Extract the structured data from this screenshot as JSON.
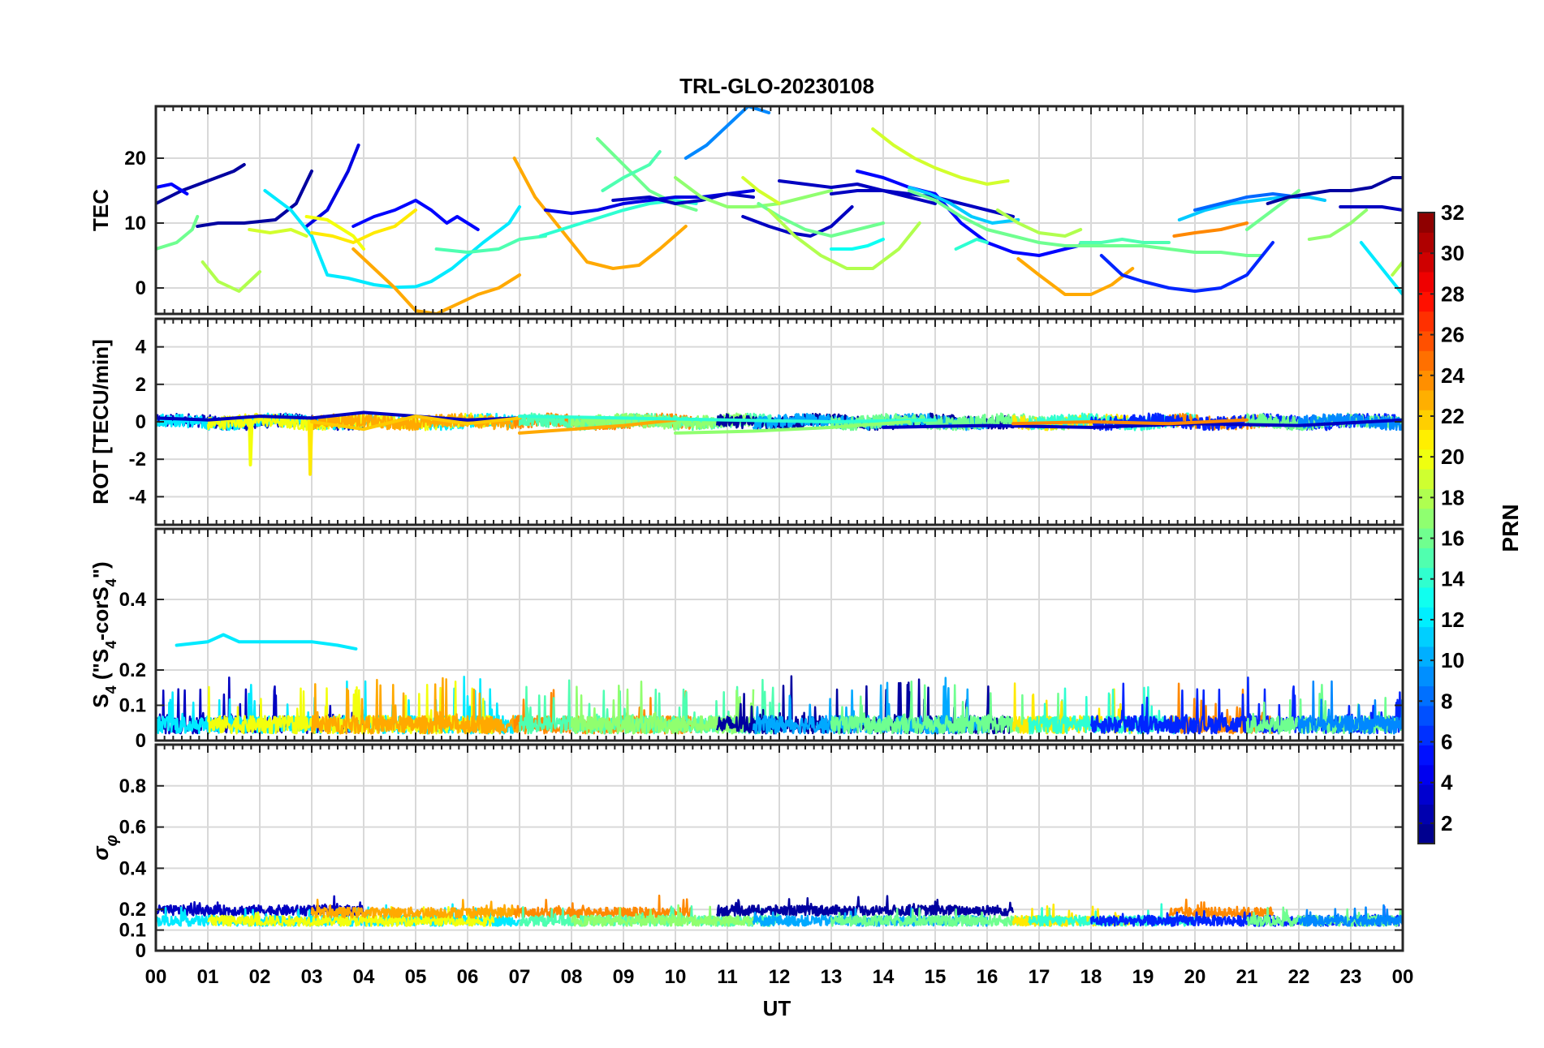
{
  "figure": {
    "title": "TRL-GLO-20230108",
    "xlabel": "UT",
    "x_ticks": [
      "00",
      "01",
      "02",
      "03",
      "04",
      "05",
      "06",
      "07",
      "08",
      "09",
      "10",
      "11",
      "12",
      "13",
      "14",
      "15",
      "16",
      "17",
      "18",
      "19",
      "20",
      "21",
      "22",
      "23",
      "00"
    ]
  },
  "colorbar": {
    "label": "PRN",
    "range": [
      1,
      32
    ],
    "ticks": [
      "2",
      "4",
      "6",
      "8",
      "10",
      "12",
      "14",
      "16",
      "18",
      "20",
      "22",
      "24",
      "26",
      "28",
      "30",
      "32"
    ],
    "colormap": "jet"
  },
  "chart_data": [
    {
      "type": "line",
      "panel": "TEC",
      "ylabel": "TEC",
      "xlim": [
        0,
        24
      ],
      "ylim": [
        -4,
        28
      ],
      "y_ticks": [
        "0",
        "10",
        "20"
      ],
      "grid": true,
      "x_unit": "hours UT",
      "series": [
        {
          "prn": 2,
          "x": [
            0.0,
            0.5,
            1.0,
            1.5,
            1.7
          ],
          "y": [
            13,
            15,
            16.5,
            18,
            19
          ]
        },
        {
          "prn": 5,
          "x": [
            0.0,
            0.3,
            0.6
          ],
          "y": [
            15.5,
            16,
            14.5
          ]
        },
        {
          "prn": 2,
          "x": [
            0.8,
            1.2,
            1.7,
            2.3,
            2.7,
            3.0
          ],
          "y": [
            9.5,
            10,
            10,
            10.5,
            13,
            18
          ]
        },
        {
          "prn": 4,
          "x": [
            2.9,
            3.3,
            3.7,
            3.9
          ],
          "y": [
            9.5,
            12,
            18,
            22
          ]
        },
        {
          "prn": 16,
          "x": [
            0.0,
            0.4,
            0.7,
            0.8
          ],
          "y": [
            6,
            7,
            9,
            11
          ]
        },
        {
          "prn": 18,
          "x": [
            0.9,
            1.2,
            1.6,
            2.0
          ],
          "y": [
            4,
            1,
            -0.5,
            2.5
          ]
        },
        {
          "prn": 19,
          "x": [
            1.8,
            2.2,
            2.6,
            2.9
          ],
          "y": [
            9,
            8.5,
            9,
            8
          ]
        },
        {
          "prn": 12,
          "x": [
            2.1,
            2.6,
            3.0,
            3.3,
            3.7,
            4.2,
            4.6,
            5.0,
            5.3,
            5.7,
            6.0,
            6.3,
            6.8,
            7.0
          ],
          "y": [
            15,
            12,
            8,
            2,
            1.5,
            0.5,
            0.1,
            0.2,
            1,
            3,
            5,
            7,
            10,
            12.5
          ]
        },
        {
          "prn": 20,
          "x": [
            2.9,
            3.3,
            3.6,
            3.8,
            4.0
          ],
          "y": [
            11,
            10.5,
            9,
            8,
            6
          ]
        },
        {
          "prn": 21,
          "x": [
            3.0,
            3.4,
            3.8,
            4.2,
            4.6,
            5.0
          ],
          "y": [
            8.5,
            8,
            7,
            8.5,
            9.5,
            12
          ]
        },
        {
          "prn": 23,
          "x": [
            3.8,
            4.2,
            4.6,
            5.0,
            5.4,
            5.8,
            6.2,
            6.6,
            7.0
          ],
          "y": [
            6,
            3,
            0,
            -3.5,
            -4,
            -2.5,
            -1,
            0,
            2
          ]
        },
        {
          "prn": 5,
          "x": [
            3.8,
            4.2,
            4.6,
            5.0,
            5.3,
            5.6,
            5.8,
            6.2
          ],
          "y": [
            9.5,
            11,
            12,
            13.5,
            12,
            10,
            11,
            9
          ]
        },
        {
          "prn": 15,
          "x": [
            5.4,
            6.0,
            6.6,
            7.0,
            7.5
          ],
          "y": [
            6,
            5.5,
            6,
            7.5,
            8
          ]
        },
        {
          "prn": 23,
          "x": [
            6.9,
            7.3,
            7.8,
            8.3,
            8.8,
            9.3,
            9.7,
            10.2
          ],
          "y": [
            20,
            14,
            9,
            4,
            3,
            3.5,
            6,
            9.5
          ]
        },
        {
          "prn": 14,
          "x": [
            7.4,
            7.8,
            8.2,
            8.6,
            9.0,
            9.5,
            10.0,
            10.4
          ],
          "y": [
            8,
            9,
            10,
            11,
            12,
            13,
            13.5,
            13
          ]
        },
        {
          "prn": 16,
          "x": [
            8.5,
            9.0,
            9.5,
            10.0,
            10.4
          ],
          "y": [
            23,
            19,
            15,
            13,
            12
          ]
        },
        {
          "prn": 15,
          "x": [
            8.6,
            9.0,
            9.5,
            9.7
          ],
          "y": [
            15,
            17,
            19,
            21
          ]
        },
        {
          "prn": 4,
          "x": [
            7.5,
            8.0,
            8.5,
            9.0,
            9.5,
            10.0,
            10.5,
            11.0,
            11.5
          ],
          "y": [
            12,
            11.5,
            12,
            13,
            13.5,
            14,
            14,
            14.5,
            15
          ]
        },
        {
          "prn": 3,
          "x": [
            8.8,
            9.5,
            10.0,
            10.5,
            11.0,
            11.5
          ],
          "y": [
            13.5,
            14,
            13,
            13.5,
            14.5,
            14
          ]
        },
        {
          "prn": 9,
          "x": [
            10.2,
            10.6,
            11.0,
            11.4,
            11.8
          ],
          "y": [
            20,
            22,
            25,
            28,
            27
          ]
        },
        {
          "prn": 17,
          "x": [
            10.0,
            10.5,
            11.0,
            11.5,
            12.0,
            12.5,
            13.0
          ],
          "y": [
            17,
            14,
            12.5,
            12.5,
            13,
            14,
            15
          ]
        },
        {
          "prn": 3,
          "x": [
            11.3,
            11.8,
            12.2,
            12.6,
            13.0,
            13.4
          ],
          "y": [
            11,
            9.5,
            8.5,
            8,
            9.5,
            12.5
          ]
        },
        {
          "prn": 19,
          "x": [
            11.3,
            11.6,
            12.0
          ],
          "y": [
            17,
            15,
            13
          ]
        },
        {
          "prn": 16,
          "x": [
            11.6,
            12.0,
            12.5,
            13.0,
            13.5,
            14.0
          ],
          "y": [
            13,
            11,
            9,
            8,
            9,
            10
          ]
        },
        {
          "prn": 18,
          "x": [
            11.8,
            12.3,
            12.8,
            13.3,
            13.8,
            14.3,
            14.7
          ],
          "y": [
            12,
            8,
            5,
            3,
            3,
            6,
            10
          ]
        },
        {
          "prn": 3,
          "x": [
            12.0,
            12.5,
            13.0,
            13.5,
            14.0,
            14.5,
            15.0
          ],
          "y": [
            16.5,
            16,
            15.5,
            16,
            15,
            14,
            13
          ]
        },
        {
          "prn": 13,
          "x": [
            13.0,
            13.4,
            13.7,
            14.0
          ],
          "y": [
            6,
            6,
            6.5,
            7.5
          ]
        },
        {
          "prn": 19,
          "x": [
            13.8,
            14.2,
            14.6,
            15.0,
            15.5,
            16.0,
            16.4
          ],
          "y": [
            24.5,
            22,
            20,
            18.5,
            17,
            16,
            16.5
          ]
        },
        {
          "prn": 3,
          "x": [
            13.0,
            13.5,
            14.0,
            14.5,
            15.0,
            15.5,
            16.0,
            16.5
          ],
          "y": [
            14.5,
            15,
            15,
            14.5,
            14,
            13,
            12,
            11
          ]
        },
        {
          "prn": 5,
          "x": [
            13.5,
            14.0,
            14.5,
            15.0,
            15.5,
            16.0,
            16.5,
            17.0,
            17.5,
            18.0
          ],
          "y": [
            18,
            17,
            15.5,
            14.5,
            10,
            7,
            5.5,
            5,
            6,
            7
          ]
        },
        {
          "prn": 11,
          "x": [
            14.5,
            14.9,
            15.3,
            15.7,
            16.1,
            16.6
          ],
          "y": [
            15.5,
            14.5,
            13,
            11,
            10,
            10.5
          ]
        },
        {
          "prn": 16,
          "x": [
            14.5,
            15.0,
            15.5,
            16.0,
            16.5,
            17.0,
            17.5,
            18.0,
            18.5,
            19.0,
            19.5,
            20.0,
            20.5,
            21.0,
            21.3
          ],
          "y": [
            15,
            13.5,
            11,
            9,
            8,
            7,
            6.5,
            6.5,
            6.5,
            6.5,
            6,
            5.5,
            5.5,
            5,
            5
          ]
        },
        {
          "prn": 14,
          "x": [
            15.4,
            15.8,
            16.0
          ],
          "y": [
            6,
            7.5,
            7
          ]
        },
        {
          "prn": 23,
          "x": [
            16.6,
            17.0,
            17.5,
            18.0,
            18.4,
            18.8
          ],
          "y": [
            4.5,
            2,
            -1,
            -1,
            0.5,
            3
          ]
        },
        {
          "prn": 18,
          "x": [
            16.2,
            16.6,
            17.0,
            17.5,
            17.8
          ],
          "y": [
            12,
            10,
            8.5,
            8,
            9
          ]
        },
        {
          "prn": 15,
          "x": [
            17.8,
            18.2,
            18.6,
            19.0,
            19.5
          ],
          "y": [
            7,
            7,
            7.5,
            7,
            7
          ]
        },
        {
          "prn": 6,
          "x": [
            18.2,
            18.6,
            19.0,
            19.5,
            20.0,
            20.5,
            21.0,
            21.5
          ],
          "y": [
            5,
            2,
            1,
            0,
            -0.5,
            0,
            2,
            7
          ]
        },
        {
          "prn": 24,
          "x": [
            19.6,
            20.0,
            20.5,
            21.0
          ],
          "y": [
            8,
            8.5,
            9,
            10
          ]
        },
        {
          "prn": 11,
          "x": [
            19.7,
            20.2,
            20.7,
            21.2,
            21.7,
            22.2,
            22.5
          ],
          "y": [
            10.5,
            12,
            13,
            13.5,
            14,
            14,
            13.5
          ]
        },
        {
          "prn": 8,
          "x": [
            20.0,
            20.5,
            21.0,
            21.5,
            22.0
          ],
          "y": [
            12,
            13,
            14,
            14.5,
            14
          ]
        },
        {
          "prn": 16,
          "x": [
            21.0,
            21.5,
            22.0
          ],
          "y": [
            9,
            12,
            15
          ]
        },
        {
          "prn": 2,
          "x": [
            21.4,
            21.8,
            22.2,
            22.6,
            23.0,
            23.4,
            23.8,
            24.0
          ],
          "y": [
            13,
            14,
            14.5,
            15,
            15,
            15.5,
            17,
            17
          ]
        },
        {
          "prn": 17,
          "x": [
            22.2,
            22.6,
            23.0,
            23.3
          ],
          "y": [
            7.5,
            8,
            10,
            12
          ]
        },
        {
          "prn": 12,
          "x": [
            23.2,
            23.5,
            23.8,
            24.0
          ],
          "y": [
            7,
            4,
            1,
            -1
          ]
        },
        {
          "prn": 3,
          "x": [
            22.8,
            23.2,
            23.6,
            24.0
          ],
          "y": [
            12.5,
            12.5,
            12.5,
            12
          ]
        },
        {
          "prn": 18,
          "x": [
            23.8,
            24.0
          ],
          "y": [
            2,
            4
          ]
        }
      ]
    },
    {
      "type": "line",
      "panel": "ROT",
      "ylabel": "ROT [TECU/min]",
      "xlim": [
        0,
        24
      ],
      "ylim": [
        -5.5,
        5.5
      ],
      "y_ticks": [
        "-4",
        "-2",
        "0",
        "2",
        "4"
      ],
      "grid": true,
      "notes_visible": "noisy traces near 0, spikes to about -2.3 near 01:48 and -2.8 near 02:57",
      "series": [
        {
          "prn": 3,
          "x": [
            0,
            1,
            2,
            3,
            4,
            5,
            6,
            7
          ],
          "y": [
            0.2,
            0.1,
            0.3,
            0.2,
            0.5,
            0.3,
            0.1,
            0.2
          ]
        },
        {
          "prn": 20,
          "x": [
            1.8,
            1.82,
            1.85
          ],
          "y": [
            0,
            -2.3,
            0
          ]
        },
        {
          "prn": 21,
          "x": [
            2.95,
            2.97,
            3.0
          ],
          "y": [
            0,
            -2.8,
            0
          ]
        },
        {
          "prn": 22,
          "x": [
            3,
            4,
            5,
            6,
            7
          ],
          "y": [
            0,
            -0.4,
            0.3,
            -0.1,
            0.2
          ]
        },
        {
          "prn": 23,
          "x": [
            7,
            8,
            9,
            10
          ],
          "y": [
            -0.6,
            -0.4,
            -0.2,
            0.1
          ]
        },
        {
          "prn": 14,
          "x": [
            7,
            9,
            11,
            13,
            15
          ],
          "y": [
            0.3,
            0.2,
            0.1,
            0.0,
            0.1
          ]
        },
        {
          "prn": 17,
          "x": [
            10,
            11.5,
            13,
            14.5
          ],
          "y": [
            -0.6,
            -0.5,
            -0.3,
            0.0
          ]
        },
        {
          "prn": 3,
          "x": [
            14,
            16,
            18,
            20,
            22,
            24
          ],
          "y": [
            -0.3,
            -0.2,
            -0.3,
            -0.1,
            -0.2,
            0.1
          ]
        },
        {
          "prn": 24,
          "x": [
            16.5,
            18,
            19.5,
            21
          ],
          "y": [
            -0.1,
            0.0,
            -0.1,
            0.1
          ]
        }
      ]
    },
    {
      "type": "line",
      "panel": "S4",
      "ylabel": "S4 (\"S4-corS4\")",
      "xlim": [
        0,
        24
      ],
      "ylim": [
        0,
        0.6
      ],
      "y_ticks": [
        "0",
        "0.1",
        "0.2",
        "0.4"
      ],
      "grid": true,
      "series": [
        {
          "prn": 12,
          "x": [
            0.4,
            1.0,
            1.3,
            1.6,
            2.0,
            2.5,
            3.0,
            3.5,
            3.85
          ],
          "y": [
            0.27,
            0.28,
            0.3,
            0.28,
            0.28,
            0.28,
            0.28,
            0.27,
            0.26
          ]
        }
      ]
    },
    {
      "type": "line",
      "panel": "sigma_phi",
      "ylabel": "σ φ",
      "xlim": [
        0,
        24
      ],
      "ylim": [
        0,
        1
      ],
      "y_ticks": [
        "0",
        "0.1",
        "0.2",
        "0.4",
        "0.6",
        "0.8"
      ],
      "grid": true,
      "series": []
    }
  ]
}
